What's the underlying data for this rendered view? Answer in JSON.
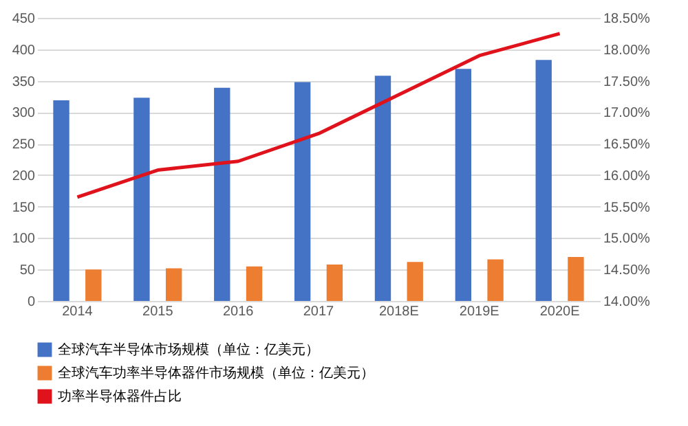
{
  "chart_data": {
    "type": "bar",
    "categories": [
      "2014",
      "2015",
      "2016",
      "2017",
      "2018E",
      "2019E",
      "2020E"
    ],
    "series": [
      {
        "name": "全球汽车半导体市场规模（单位：亿美元）",
        "color": "#4472c4",
        "values": [
          319,
          323,
          339,
          348,
          358,
          369,
          383
        ]
      },
      {
        "name": "全球汽车功率半导体器件市场规模（单位：亿美元）",
        "color": "#ed7d31",
        "values": [
          50,
          52,
          55,
          58,
          62,
          66,
          70
        ]
      },
      {
        "name": "功率半导体器件占比",
        "color": "#e0121b",
        "type": "line",
        "axis": "y2",
        "values": [
          15.65,
          16.08,
          16.22,
          16.66,
          17.28,
          17.9,
          18.25
        ]
      }
    ],
    "ylim": [
      0,
      450
    ],
    "yticks": [
      0,
      50,
      100,
      150,
      200,
      250,
      300,
      350,
      400,
      450
    ],
    "y2lim": [
      14,
      18.5
    ],
    "y2ticks": [
      {
        "value": 14,
        "label": "14.00%"
      },
      {
        "value": 14.5,
        "label": "14.50%"
      },
      {
        "value": 15,
        "label": "15.00%"
      },
      {
        "value": 15.5,
        "label": "15.50%"
      },
      {
        "value": 16,
        "label": "16.00%"
      },
      {
        "value": 16.5,
        "label": "16.50%"
      },
      {
        "value": 17,
        "label": "17.00%"
      },
      {
        "value": 17.5,
        "label": "17.50%"
      },
      {
        "value": 18,
        "label": "18.00%"
      },
      {
        "value": 18.5,
        "label": "18.50%"
      }
    ],
    "grid": "y",
    "legend": "bottom"
  }
}
